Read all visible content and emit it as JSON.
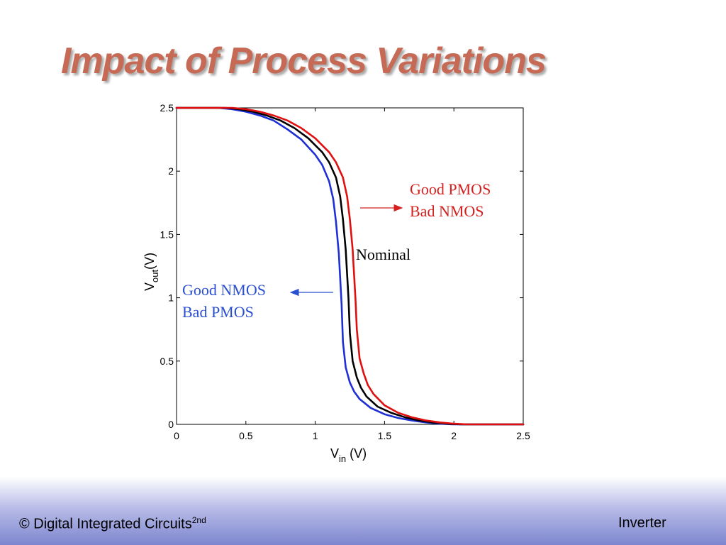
{
  "slide": {
    "title": "Impact of Process Variations",
    "footer_left_main": "© Digital Integrated Circuits",
    "footer_left_sup": "2nd",
    "footer_right": "Inverter"
  },
  "chart_data": {
    "type": "line",
    "title": "",
    "xlabel_main": "V",
    "xlabel_sub": "in",
    "xlabel_unit": " (V)",
    "ylabel_main": "V",
    "ylabel_sub": "out",
    "ylabel_unit": "(V)",
    "xlim": [
      0,
      2.5
    ],
    "ylim": [
      0,
      2.5
    ],
    "xticks": [
      "0",
      "0.5",
      "1",
      "1.5",
      "2",
      "2.5"
    ],
    "yticks": [
      "0",
      "0.5",
      "1",
      "1.5",
      "2",
      "2.5"
    ],
    "grid": false,
    "series": [
      {
        "name": "Good NMOS / Bad PMOS",
        "color": "#1f2fd6",
        "x": [
          0,
          0.3,
          0.4,
          0.5,
          0.6,
          0.7,
          0.8,
          0.9,
          1.0,
          1.05,
          1.1,
          1.13,
          1.15,
          1.17,
          1.19,
          1.2,
          1.22,
          1.25,
          1.28,
          1.32,
          1.4,
          1.5,
          1.6,
          1.7,
          1.8,
          1.9,
          2.0,
          2.5
        ],
        "y": [
          2.5,
          2.5,
          2.49,
          2.47,
          2.44,
          2.4,
          2.33,
          2.25,
          2.13,
          2.05,
          1.92,
          1.78,
          1.6,
          1.35,
          0.95,
          0.65,
          0.45,
          0.33,
          0.26,
          0.2,
          0.13,
          0.08,
          0.05,
          0.03,
          0.015,
          0.005,
          0,
          0
        ]
      },
      {
        "name": "Nominal",
        "color": "#000000",
        "x": [
          0,
          0.35,
          0.45,
          0.55,
          0.65,
          0.75,
          0.85,
          0.95,
          1.05,
          1.1,
          1.15,
          1.18,
          1.2,
          1.22,
          1.24,
          1.25,
          1.27,
          1.3,
          1.33,
          1.37,
          1.45,
          1.55,
          1.65,
          1.75,
          1.85,
          1.95,
          2.05,
          2.5
        ],
        "y": [
          2.5,
          2.5,
          2.49,
          2.47,
          2.44,
          2.4,
          2.34,
          2.26,
          2.15,
          2.07,
          1.95,
          1.8,
          1.62,
          1.38,
          1.0,
          0.72,
          0.5,
          0.37,
          0.29,
          0.22,
          0.14,
          0.09,
          0.055,
          0.03,
          0.015,
          0.005,
          0,
          0
        ]
      },
      {
        "name": "Good PMOS / Bad NMOS",
        "color": "#e01010",
        "x": [
          0,
          0.4,
          0.5,
          0.6,
          0.7,
          0.8,
          0.9,
          1.0,
          1.1,
          1.15,
          1.2,
          1.23,
          1.25,
          1.27,
          1.29,
          1.3,
          1.32,
          1.35,
          1.38,
          1.42,
          1.5,
          1.6,
          1.7,
          1.8,
          1.9,
          2.0,
          2.1,
          2.5
        ],
        "y": [
          2.5,
          2.5,
          2.49,
          2.47,
          2.44,
          2.4,
          2.34,
          2.26,
          2.15,
          2.07,
          1.95,
          1.8,
          1.62,
          1.38,
          1.0,
          0.75,
          0.52,
          0.4,
          0.31,
          0.24,
          0.15,
          0.09,
          0.055,
          0.03,
          0.015,
          0.005,
          0,
          0
        ]
      }
    ],
    "annotations": [
      {
        "lines": [
          "Good PMOS",
          "Bad NMOS"
        ],
        "color": "#d42020",
        "arrow": "right"
      },
      {
        "lines": [
          "Nominal"
        ],
        "color": "#000000",
        "arrow": "none"
      },
      {
        "lines": [
          "Good NMOS",
          "Bad PMOS"
        ],
        "color": "#2a4fd0",
        "arrow": "left"
      }
    ]
  }
}
